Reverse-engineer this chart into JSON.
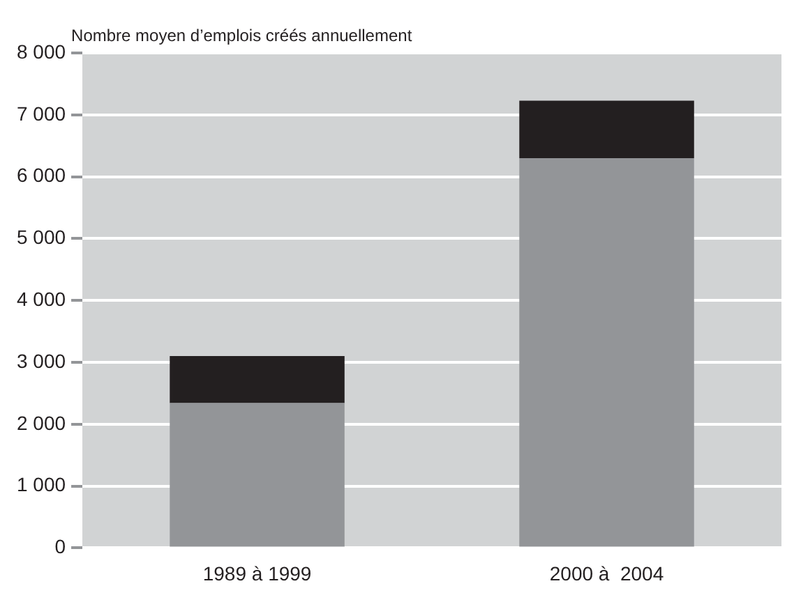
{
  "chart_data": {
    "type": "bar",
    "ylabel": "Nombre moyen d’emplois créés annuellement",
    "categories": [
      "1989 à 1999",
      "2000 à  2004"
    ],
    "stacked": true,
    "series": [
      {
        "color": "#939598",
        "values": [
          2340,
          6300
        ]
      },
      {
        "color": "#231f20",
        "values": [
          760,
          930
        ]
      }
    ],
    "ylim": [
      0,
      8000
    ],
    "yticks": [
      0,
      {
        "value": 1000,
        "label": "1 000"
      },
      {
        "value": 2000,
        "label": "2 000"
      },
      {
        "value": 3000,
        "label": "3 000"
      },
      {
        "value": 4000,
        "label": "4 000"
      },
      {
        "value": 5000,
        "label": "5 000"
      },
      {
        "value": 6000,
        "label": "6 000"
      },
      {
        "value": 7000,
        "label": "7 000"
      },
      {
        "value": 8000,
        "label": "8 000"
      }
    ],
    "grid": "y",
    "legend": false
  }
}
